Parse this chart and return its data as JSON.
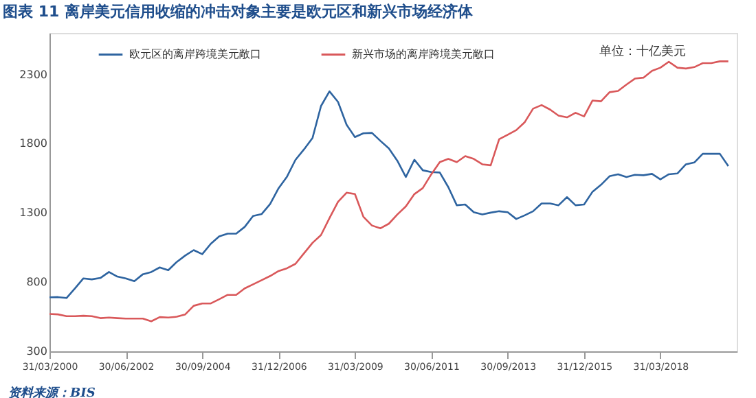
{
  "chart_data": {
    "type": "line",
    "title": "图表 11    离岸美元信用收缩的冲击对象主要是欧元区和新兴市场经济体",
    "x": [
      "2000-03-31",
      "2000-06-30",
      "2000-09-30",
      "2000-12-31",
      "2001-03-31",
      "2001-06-30",
      "2001-09-30",
      "2001-12-31",
      "2002-03-31",
      "2002-06-30",
      "2002-09-30",
      "2002-12-31",
      "2003-03-31",
      "2003-06-30",
      "2003-09-30",
      "2003-12-31",
      "2004-03-31",
      "2004-06-30",
      "2004-09-30",
      "2004-12-31",
      "2005-03-31",
      "2005-06-30",
      "2005-09-30",
      "2005-12-31",
      "2006-03-31",
      "2006-06-30",
      "2006-09-30",
      "2006-12-31",
      "2007-03-31",
      "2007-06-30",
      "2007-09-30",
      "2007-12-31",
      "2008-03-31",
      "2008-06-30",
      "2008-09-30",
      "2008-12-31",
      "2009-03-31",
      "2009-06-30",
      "2009-09-30",
      "2009-12-31",
      "2010-03-31",
      "2010-06-30",
      "2010-09-30",
      "2010-12-31",
      "2011-03-31",
      "2011-06-30",
      "2011-09-30",
      "2011-12-31",
      "2012-03-31",
      "2012-06-30",
      "2012-09-30",
      "2012-12-31",
      "2013-03-31",
      "2013-06-30",
      "2013-09-30",
      "2013-12-31",
      "2014-03-31",
      "2014-06-30",
      "2014-09-30",
      "2014-12-31",
      "2015-03-31",
      "2015-06-30",
      "2015-09-30",
      "2015-12-31",
      "2016-03-31",
      "2016-06-30",
      "2016-09-30",
      "2016-12-31",
      "2017-03-31",
      "2017-06-30",
      "2017-09-30",
      "2017-12-31",
      "2018-03-31",
      "2018-06-30",
      "2018-09-30",
      "2018-12-31",
      "2019-03-31",
      "2019-06-30",
      "2019-09-30",
      "2019-12-31",
      "2020-03-31"
    ],
    "series": [
      {
        "name": "欧元区的离岸跨境美元敞口",
        "color": "#2e64a0",
        "values": [
          690,
          692,
          685,
          755,
          827,
          820,
          830,
          873,
          840,
          827,
          807,
          857,
          873,
          906,
          886,
          946,
          992,
          1031,
          1002,
          1077,
          1130,
          1150,
          1150,
          1199,
          1278,
          1291,
          1364,
          1479,
          1562,
          1683,
          1759,
          1842,
          2072,
          2178,
          2102,
          1937,
          1848,
          1875,
          1878,
          1820,
          1766,
          1677,
          1559,
          1684,
          1608,
          1595,
          1592,
          1486,
          1355,
          1361,
          1305,
          1289,
          1302,
          1312,
          1305,
          1256,
          1282,
          1312,
          1368,
          1368,
          1355,
          1414,
          1355,
          1361,
          1453,
          1503,
          1565,
          1579,
          1559,
          1575,
          1572,
          1582,
          1542,
          1579,
          1585,
          1651,
          1664,
          1727,
          1727,
          1727,
          1638
        ]
      },
      {
        "name": "新兴市场的离岸跨境美元敞口",
        "color": "#d9585a",
        "values": [
          570,
          567,
          554,
          554,
          557,
          554,
          540,
          544,
          540,
          537,
          537,
          537,
          517,
          547,
          544,
          550,
          567,
          629,
          646,
          646,
          676,
          708,
          708,
          755,
          784,
          814,
          844,
          880,
          900,
          932,
          1008,
          1084,
          1140,
          1262,
          1380,
          1446,
          1436,
          1272,
          1209,
          1189,
          1222,
          1288,
          1347,
          1436,
          1479,
          1578,
          1667,
          1690,
          1667,
          1710,
          1690,
          1651,
          1644,
          1832,
          1865,
          1898,
          1954,
          2053,
          2079,
          2046,
          2003,
          1990,
          2023,
          1997,
          2112,
          2106,
          2172,
          2181,
          2227,
          2270,
          2277,
          2326,
          2349,
          2392,
          2349,
          2343,
          2353,
          2382,
          2382,
          2395,
          2395
        ]
      }
    ],
    "xlim": [
      "2000-03-31",
      "2020-06-30"
    ],
    "xticks": [
      {
        "value": "2000-03-31",
        "label": "31/03/2000"
      },
      {
        "value": "2002-06-30",
        "label": "30/06/2002"
      },
      {
        "value": "2004-09-30",
        "label": "30/09/2004"
      },
      {
        "value": "2006-12-31",
        "label": "31/12/2006"
      },
      {
        "value": "2009-03-31",
        "label": "31/03/2009"
      },
      {
        "value": "2011-06-30",
        "label": "30/06/2011"
      },
      {
        "value": "2013-09-30",
        "label": "30/09/2013"
      },
      {
        "value": "2015-12-31",
        "label": "31/12/2015"
      },
      {
        "value": "2018-03-31",
        "label": "31/03/2018"
      }
    ],
    "ylim": [
      300,
      2600
    ],
    "yticks": [
      300,
      800,
      1300,
      1800,
      2300
    ],
    "grid": false,
    "legend": "top",
    "annotations": [
      "单位：十亿美元",
      "资料来源：BIS"
    ]
  }
}
